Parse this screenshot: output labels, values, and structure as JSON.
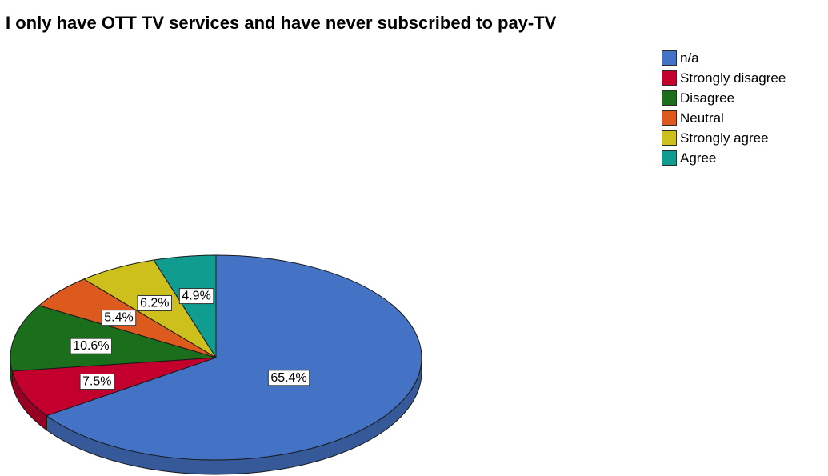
{
  "chart_data": {
    "type": "pie",
    "title": "I only have OTT TV services and have never subscribed to pay-TV",
    "legend_position": "top-right",
    "slices": [
      {
        "label": "n/a",
        "value": 65.4,
        "display": "65.4%",
        "color": "#4472c4"
      },
      {
        "label": "Strongly disagree",
        "value": 7.5,
        "display": "7.5%",
        "color": "#c3002d"
      },
      {
        "label": "Disagree",
        "value": 10.6,
        "display": "10.6%",
        "color": "#1b6e1b"
      },
      {
        "label": "Neutral",
        "value": 5.4,
        "display": "5.4%",
        "color": "#dd5a1f"
      },
      {
        "label": "Strongly agree",
        "value": 6.2,
        "display": "6.2%",
        "color": "#cdc01c"
      },
      {
        "label": "Agree",
        "value": 4.9,
        "display": "4.9%",
        "color": "#109c8e"
      }
    ]
  }
}
